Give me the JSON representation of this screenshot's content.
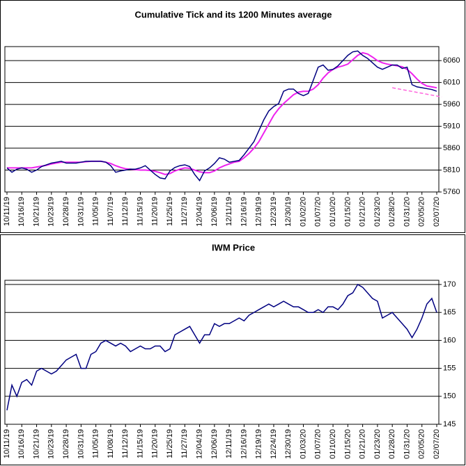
{
  "chart_data": [
    {
      "type": "line",
      "title": "Cumulative Tick and its 1200 Minutes average",
      "categories": [
        "10/11/19",
        null,
        null,
        "10/16/19",
        null,
        null,
        "10/21/19",
        null,
        null,
        "10/23/19",
        null,
        null,
        "10/28/19",
        null,
        null,
        "10/31/19",
        null,
        null,
        "11/05/19",
        null,
        null,
        "11/07/19",
        null,
        null,
        "11/12/19",
        null,
        null,
        "11/15/19",
        null,
        null,
        "11/20/19",
        null,
        null,
        "11/25/19",
        null,
        null,
        "11/27/19",
        null,
        null,
        "12/04/19",
        null,
        null,
        "12/06/19",
        null,
        null,
        "12/11/19",
        null,
        null,
        "12/16/19",
        null,
        null,
        "12/19/19",
        null,
        null,
        "12/23/19",
        null,
        null,
        "12/30/19",
        null,
        null,
        "01/02/20",
        null,
        null,
        "01/07/20",
        null,
        null,
        "01/10/20",
        null,
        null,
        "01/15/20",
        null,
        null,
        "01/21/20",
        null,
        null,
        "01/23/20",
        null,
        null,
        "01/28/20",
        null,
        null,
        "01/31/20",
        null,
        null,
        "02/05/20",
        null,
        null,
        "02/07/20"
      ],
      "series": [
        {
          "color": "#000080",
          "values": [
            5815,
            5805,
            5812,
            5815,
            5812,
            5805,
            5810,
            5818,
            5822,
            5826,
            5828,
            5830,
            5826,
            5826,
            5826,
            5828,
            5830,
            5830,
            5830,
            5830,
            5828,
            5820,
            5805,
            5808,
            5810,
            5812,
            5812,
            5815,
            5820,
            5810,
            5800,
            5792,
            5790,
            5808,
            5816,
            5820,
            5822,
            5818,
            5800,
            5786,
            5808,
            5815,
            5825,
            5838,
            5835,
            5828,
            5830,
            5832,
            5845,
            5860,
            5875,
            5900,
            5925,
            5945,
            5955,
            5962,
            5990,
            5995,
            5995,
            5985,
            5980,
            5985,
            6015,
            6045,
            6050,
            6038,
            6040,
            6048,
            6060,
            6072,
            6080,
            6082,
            6072,
            6065,
            6055,
            6045,
            6040,
            6045,
            6050,
            6050,
            6042,
            6045,
            6005,
            6000,
            5998,
            5996,
            5994,
            5990
          ]
        },
        {
          "color": "#ee22ee",
          "values": [
            5815,
            5815,
            5815,
            5815,
            5815,
            5815,
            5817,
            5819,
            5821,
            5824,
            5826,
            5828,
            5828,
            5828,
            5828,
            5828,
            5829,
            5830,
            5830,
            5830,
            5828,
            5825,
            5820,
            5816,
            5813,
            5812,
            5811,
            5810,
            5810,
            5809,
            5807,
            5804,
            5800,
            5802,
            5808,
            5812,
            5815,
            5814,
            5810,
            5806,
            5804,
            5804,
            5808,
            5815,
            5820,
            5824,
            5828,
            5830,
            5838,
            5848,
            5860,
            5875,
            5895,
            5915,
            5935,
            5950,
            5962,
            5972,
            5982,
            5988,
            5990,
            5990,
            5995,
            6005,
            6020,
            6032,
            6040,
            6045,
            6048,
            6052,
            6062,
            6072,
            6078,
            6075,
            6068,
            6060,
            6055,
            6052,
            6050,
            6048,
            6046,
            6040,
            6030,
            6018,
            6008,
            6002,
            6000,
            5998
          ]
        }
      ],
      "trend": {
        "x": [
          78,
          88
        ],
        "values": [
          5998,
          5977
        ],
        "color": "#ff66dd",
        "dashed": true
      },
      "ylim": [
        5760,
        6092
      ],
      "yticks": [
        5760,
        5810,
        5860,
        5910,
        5960,
        6010,
        6060
      ],
      "grid": true
    },
    {
      "type": "line",
      "title": "IWM Price",
      "categories": [
        "10/11/19",
        null,
        null,
        "10/16/19",
        null,
        null,
        "10/21/19",
        null,
        null,
        "10/23/19",
        null,
        null,
        "10/28/19",
        null,
        null,
        "10/31/19",
        null,
        null,
        "11/05/19",
        null,
        null,
        "11/08/19",
        null,
        null,
        "11/12/19",
        null,
        null,
        "11/15/19",
        null,
        null,
        "11/20/19",
        null,
        null,
        "11/25/19",
        null,
        null,
        "11/27/19",
        null,
        null,
        "12/04/19",
        null,
        null,
        "12/06/19",
        null,
        null,
        "12/11/19",
        null,
        null,
        "12/16/19",
        null,
        null,
        "12/19/19",
        null,
        null,
        "12/24/19",
        null,
        null,
        "12/30/19",
        null,
        null,
        "01/03/20",
        null,
        null,
        "01/07/20",
        null,
        null,
        "01/10/20",
        null,
        null,
        "01/15/20",
        null,
        null,
        "01/21/20",
        null,
        null,
        "01/23/20",
        null,
        null,
        "01/28/20",
        null,
        null,
        "01/31/20",
        null,
        null,
        "02/05/20",
        null,
        null,
        "02/07/20"
      ],
      "series": [
        {
          "color": "#000080",
          "values": [
            147.5,
            152,
            150,
            152.5,
            153,
            152,
            154.5,
            155,
            154.5,
            154,
            154.5,
            155.5,
            156.5,
            157,
            157.5,
            155,
            155,
            157.5,
            158,
            159.5,
            160,
            159.5,
            159,
            159.5,
            159,
            158,
            158.5,
            159,
            158.5,
            158.5,
            159,
            159,
            158,
            158.5,
            161,
            161.5,
            162,
            162.5,
            161,
            159.5,
            161,
            161,
            163,
            162.5,
            163,
            163,
            163.5,
            164,
            163.5,
            164.5,
            165,
            165.5,
            166,
            166.5,
            166,
            166.5,
            167,
            166.5,
            166,
            166,
            165.5,
            165,
            165,
            165.5,
            165,
            166,
            166,
            165.5,
            166.5,
            168,
            168.5,
            170,
            169.5,
            168.5,
            167.5,
            167,
            164,
            164.5,
            165,
            164,
            163,
            162,
            160.5,
            162,
            164,
            166.5,
            167.5,
            165
          ]
        }
      ],
      "ylim": [
        145,
        170.75
      ],
      "yticks": [
        145,
        150,
        155,
        160,
        165,
        170
      ],
      "grid": true
    }
  ]
}
